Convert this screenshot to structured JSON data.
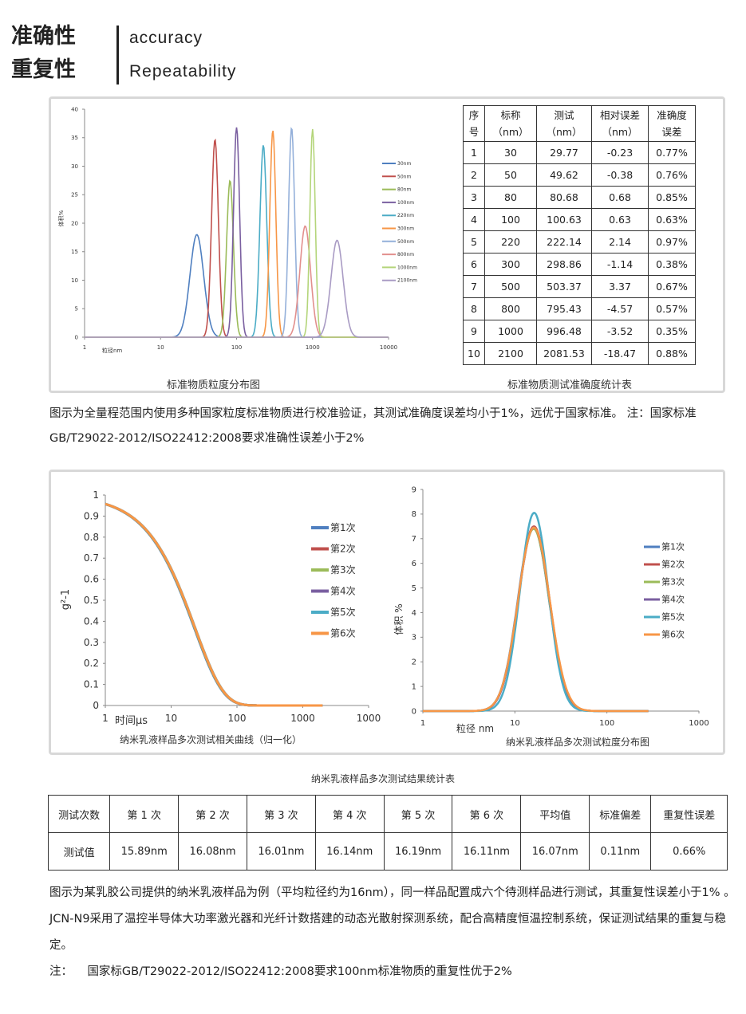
{
  "header": {
    "title_cn_1": "准确性",
    "title_cn_2": "重复性",
    "title_en_1": "accuracy",
    "title_en_2": "Repeatability"
  },
  "section1": {
    "chart_caption": "标准物质粒度分布图",
    "table_caption": "标准物质测试准确度统计表",
    "table": {
      "headers": [
        [
          "序",
          "号"
        ],
        [
          "标称",
          "（nm）"
        ],
        [
          "测试",
          "（nm）"
        ],
        [
          "相对误差",
          "（nm）"
        ],
        [
          "准确度",
          "误差"
        ]
      ],
      "rows": [
        [
          "1",
          "30",
          "29.77",
          "-0.23",
          "0.77%"
        ],
        [
          "2",
          "50",
          "49.62",
          "-0.38",
          "0.76%"
        ],
        [
          "3",
          "80",
          "80.68",
          "0.68",
          "0.85%"
        ],
        [
          "4",
          "100",
          "100.63",
          "0.63",
          "0.63%"
        ],
        [
          "5",
          "220",
          "222.14",
          "2.14",
          "0.97%"
        ],
        [
          "6",
          "300",
          "298.86",
          "-1.14",
          "0.38%"
        ],
        [
          "7",
          "500",
          "503.37",
          "3.37",
          "0.67%"
        ],
        [
          "8",
          "800",
          "795.43",
          "-4.57",
          "0.57%"
        ],
        [
          "9",
          "1000",
          "996.48",
          "-3.52",
          "0.35%"
        ],
        [
          "10",
          "2100",
          "2081.53",
          "-18.47",
          "0.88%"
        ]
      ]
    },
    "paragraph": "图示为全量程范围内使用多种国家粒度标准物质进行校准验证，其测试准确度误差均小于1%，远优于国家标准。 注：国家标准GB/T29022-2012/ISO22412:2008要求准确性误差小于2%"
  },
  "section2": {
    "table_title": "纳米乳液样品多次测试结果统计表",
    "table": {
      "headers": [
        "测试次数",
        "第 1 次",
        "第 2 次",
        "第 3 次",
        "第 4 次",
        "第 5 次",
        "第 6 次",
        "平均值",
        "标准偏差",
        "重复性误差"
      ],
      "row": [
        "测试值",
        "15.89nm",
        "16.08nm",
        "16.01nm",
        "16.14nm",
        "16.19nm",
        "16.11nm",
        "16.07nm",
        "0.11nm",
        "0.66%"
      ]
    },
    "paragraph_1": "图示为某乳胶公司提供的纳米乳液样品为例（平均粒径约为16nm），同一样品配置成六个待测样品进行测试，其重复性误差小于1% 。JCN-N9采用了温控半导体大功率激光器和光纤计数搭建的动态光散射探测系统，配合高精度恒温控制系统，保证测试结果的重复与稳定。",
    "note_label": "注：",
    "note": "国家标GB/T29022-2012/ISO22412:2008要求100nm标准物质的重复性优于2%"
  },
  "chart_data": [
    {
      "type": "line",
      "title": "标准物质粒度分布图",
      "xlabel": "粒径nm",
      "ylabel": "体积%",
      "xscale": "log",
      "xlim": [
        1,
        10000
      ],
      "ylim": [
        0,
        40
      ],
      "xticks": [
        "1",
        "10",
        "100",
        "1000",
        "10000"
      ],
      "yticks": [
        "0",
        "5",
        "10",
        "15",
        "20",
        "25",
        "30",
        "35",
        "40"
      ],
      "legend": "right",
      "series": [
        {
          "name": "30nm",
          "color": "#4f7fc0",
          "peak_x": 30,
          "peak_y": 18,
          "log_sigma": 0.09
        },
        {
          "name": "50nm",
          "color": "#c0504d",
          "peak_x": 52,
          "peak_y": 34.7,
          "log_sigma": 0.045
        },
        {
          "name": "80nm",
          "color": "#9bbb59",
          "peak_x": 82,
          "peak_y": 27.5,
          "log_sigma": 0.045
        },
        {
          "name": "100nm",
          "color": "#7a5fa0",
          "peak_x": 100,
          "peak_y": 36.8,
          "log_sigma": 0.04
        },
        {
          "name": "220nm",
          "color": "#4bacc6",
          "peak_x": 225,
          "peak_y": 33.7,
          "log_sigma": 0.045
        },
        {
          "name": "300nm",
          "color": "#f79646",
          "peak_x": 300,
          "peak_y": 36.3,
          "log_sigma": 0.04
        },
        {
          "name": "500nm",
          "color": "#94b0da",
          "peak_x": 530,
          "peak_y": 36.8,
          "log_sigma": 0.04
        },
        {
          "name": "800nm",
          "color": "#e28f8d",
          "peak_x": 800,
          "peak_y": 19.5,
          "log_sigma": 0.07
        },
        {
          "name": "1000nm",
          "color": "#b4d57a",
          "peak_x": 1000,
          "peak_y": 36.5,
          "log_sigma": 0.035
        },
        {
          "name": "2100nm",
          "color": "#a99bc4",
          "peak_x": 2100,
          "peak_y": 17,
          "log_sigma": 0.08
        }
      ]
    },
    {
      "type": "line",
      "title": "纳米乳液样品多次测试相关曲线（归一化）",
      "xlabel": "时间μs",
      "ylabel": "g²-1",
      "xscale": "log",
      "xlim": [
        1,
        10000
      ],
      "ylim": [
        0,
        1
      ],
      "xticks": [
        "1",
        "10",
        "100",
        "1000",
        "1000"
      ],
      "yticks": [
        "0",
        "0.1",
        "0.2",
        "0.3",
        "0.4",
        "0.5",
        "0.6",
        "0.7",
        "0.8",
        "0.9",
        "1"
      ],
      "legend": "right",
      "series": [
        {
          "name": "第1次",
          "color": "#4f7fc0",
          "decay_rate": 0.0445
        },
        {
          "name": "第2次",
          "color": "#c0504d",
          "decay_rate": 0.0435
        },
        {
          "name": "第3次",
          "color": "#9bbb59",
          "decay_rate": 0.0438
        },
        {
          "name": "第4次",
          "color": "#7a5fa0",
          "decay_rate": 0.0432
        },
        {
          "name": "第5次",
          "color": "#4bacc6",
          "decay_rate": 0.043
        },
        {
          "name": "第6次",
          "color": "#f79646",
          "decay_rate": 0.0433
        }
      ]
    },
    {
      "type": "line",
      "title": "纳米乳液样品多次测试粒度分布图",
      "xlabel": "粒径 nm",
      "ylabel": "体积 %",
      "xscale": "log",
      "xlim": [
        1,
        1000
      ],
      "ylim": [
        0,
        9
      ],
      "xticks": [
        "1",
        "10",
        "100",
        "1000"
      ],
      "yticks": [
        "0",
        "1",
        "2",
        "3",
        "4",
        "5",
        "6",
        "7",
        "8",
        "9"
      ],
      "legend": "right",
      "series": [
        {
          "name": "第1次",
          "color": "#4f7fc0",
          "peak_x": 15.9,
          "peak_y": 7.45,
          "log_sigma": 0.17
        },
        {
          "name": "第2次",
          "color": "#c0504d",
          "peak_x": 16.1,
          "peak_y": 7.5,
          "log_sigma": 0.17
        },
        {
          "name": "第3次",
          "color": "#9bbb59",
          "peak_x": 16.0,
          "peak_y": 7.4,
          "log_sigma": 0.17
        },
        {
          "name": "第4次",
          "color": "#7a5fa0",
          "peak_x": 16.1,
          "peak_y": 7.45,
          "log_sigma": 0.17
        },
        {
          "name": "第5次",
          "color": "#4bacc6",
          "peak_x": 16.2,
          "peak_y": 8.05,
          "log_sigma": 0.155
        },
        {
          "name": "第6次",
          "color": "#f79646",
          "peak_x": 16.1,
          "peak_y": 7.45,
          "log_sigma": 0.172
        }
      ]
    }
  ]
}
